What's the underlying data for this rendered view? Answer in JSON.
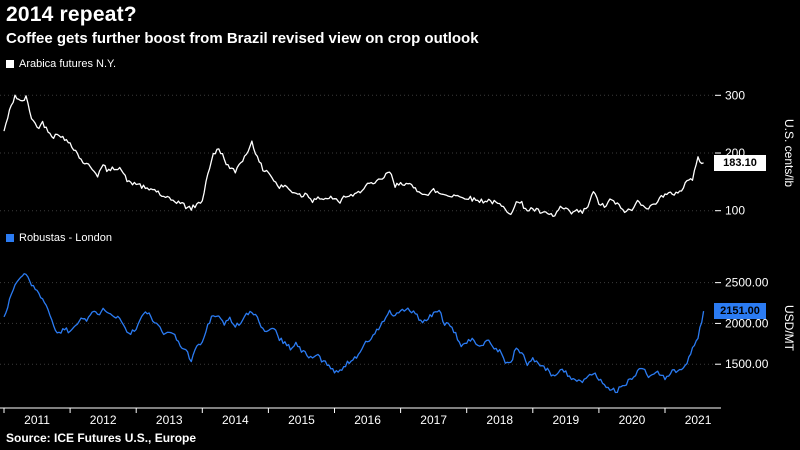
{
  "header": {
    "title": "2014 repeat?",
    "subtitle": "Coffee gets further boost from Brazil revised view on crop outlook"
  },
  "footer": {
    "source": "Source: ICE Futures U.S., Europe"
  },
  "colors": {
    "background": "#000000",
    "grid": "#3b3b3b",
    "text": "#ffffff",
    "arabica": "#ffffff",
    "robusta": "#2b7bf2"
  },
  "chart_data": {
    "type": "line",
    "x_start_year": 2011,
    "x_interval": "monthly",
    "x_tick_labels": [
      "2011",
      "2012",
      "2013",
      "2014",
      "2015",
      "2016",
      "2017",
      "2018",
      "2019",
      "2020",
      "2021"
    ],
    "panels": [
      {
        "name": "arabica",
        "legend": "Arabica futures N.Y.",
        "axis_title": "U.S. cents/lb",
        "color": "#ffffff",
        "last_label": "183.10",
        "last_value": 183.1,
        "ylim": [
          70,
          330
        ],
        "y_ticks": [
          {
            "value": 100,
            "label": "100"
          },
          {
            "value": 200,
            "label": "200"
          },
          {
            "value": 300,
            "label": "300"
          }
        ],
        "values": [
          238,
          272,
          300,
          288,
          296,
          262,
          244,
          252,
          240,
          228,
          234,
          222,
          218,
          204,
          188,
          180,
          174,
          162,
          178,
          168,
          174,
          176,
          158,
          146,
          148,
          142,
          136,
          138,
          132,
          122,
          120,
          117,
          114,
          107,
          104,
          110,
          118,
          165,
          196,
          208,
          190,
          172,
          168,
          186,
          196,
          222,
          190,
          172,
          168,
          152,
          140,
          144,
          134,
          132,
          126,
          130,
          118,
          124,
          116,
          124,
          118,
          116,
          126,
          124,
          128,
          138,
          146,
          144,
          152,
          158,
          168,
          142,
          150,
          146,
          142,
          136,
          132,
          126,
          136,
          130,
          128,
          126,
          128,
          122,
          124,
          120,
          118,
          117,
          118,
          114,
          110,
          102,
          97,
          114,
          112,
          101,
          103,
          99,
          95,
          93,
          91,
          106,
          101,
          96,
          99,
          97,
          108,
          132,
          114,
          106,
          118,
          114,
          104,
          99,
          101,
          116,
          112,
          104,
          110,
          124,
          126,
          129,
          131,
          136,
          152,
          156,
          190,
          183.1
        ]
      },
      {
        "name": "robusta",
        "legend": "Robustas - London",
        "axis_title": "USD/MT",
        "color": "#2b7bf2",
        "last_label": "2151.00",
        "last_value": 2151,
        "ylim": [
          1000,
          2900
        ],
        "y_ticks": [
          {
            "value": 1500,
            "label": "1500.00"
          },
          {
            "value": 2000,
            "label": "2000.00"
          },
          {
            "value": 2500,
            "label": "2500.00"
          }
        ],
        "values": [
          2080,
          2280,
          2480,
          2560,
          2620,
          2480,
          2380,
          2320,
          2180,
          1960,
          1880,
          1940,
          1900,
          1990,
          2080,
          2040,
          2140,
          2100,
          2200,
          2140,
          2100,
          2060,
          1940,
          1880,
          1940,
          2080,
          2140,
          2040,
          1960,
          1860,
          1920,
          1840,
          1740,
          1660,
          1560,
          1720,
          1760,
          1980,
          2120,
          2080,
          2000,
          2060,
          1960,
          2020,
          2100,
          2140,
          2060,
          1940,
          1900,
          1960,
          1820,
          1760,
          1700,
          1760,
          1660,
          1620,
          1560,
          1620,
          1520,
          1500,
          1420,
          1400,
          1500,
          1540,
          1600,
          1700,
          1780,
          1840,
          1940,
          2040,
          2140,
          2080,
          2140,
          2180,
          2140,
          2100,
          2000,
          2060,
          2120,
          2160,
          2000,
          1960,
          1860,
          1740,
          1760,
          1800,
          1740,
          1760,
          1800,
          1700,
          1660,
          1540,
          1500,
          1700,
          1640,
          1500,
          1560,
          1520,
          1460,
          1400,
          1340,
          1460,
          1400,
          1340,
          1300,
          1260,
          1360,
          1400,
          1310,
          1260,
          1210,
          1160,
          1210,
          1260,
          1340,
          1410,
          1460,
          1340,
          1400,
          1390,
          1340,
          1400,
          1410,
          1450,
          1520,
          1700,
          1820,
          2151
        ]
      }
    ]
  }
}
